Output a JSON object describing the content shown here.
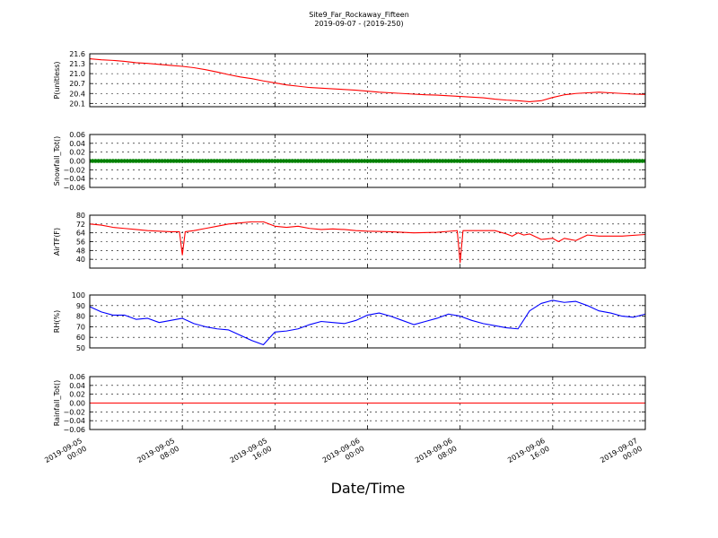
{
  "figure": {
    "title_line1": "Site9_Far_Rockaway_Fifteen",
    "title_line2": "2019-09-07 - (2019-250)",
    "xlabel": "Date/Time",
    "x_ticks": [
      {
        "line1": "2019-09-05",
        "line2": "00:00"
      },
      {
        "line1": "2019-09-05",
        "line2": "08:00"
      },
      {
        "line1": "2019-09-05",
        "line2": "16:00"
      },
      {
        "line1": "2019-09-06",
        "line2": "00:00"
      },
      {
        "line1": "2019-09-06",
        "line2": "08:00"
      },
      {
        "line1": "2019-09-06",
        "line2": "16:00"
      },
      {
        "line1": "2019-09-07",
        "line2": "00:00"
      }
    ]
  },
  "chart_data": [
    {
      "type": "line",
      "ylabel": "P(unitless)",
      "ylim": [
        20.0,
        21.6
      ],
      "yticks": [
        20.1,
        20.4,
        20.7,
        21.0,
        21.3,
        21.6
      ],
      "ytick_labels": [
        "20.1",
        "20.4",
        "20.7",
        "21.0",
        "21.3",
        "21.6"
      ],
      "xlim": [
        "2019-09-05 00:00",
        "2019-09-07 00:00"
      ],
      "color": "#ff0000",
      "grid": true,
      "series": [
        {
          "x": [
            "2019-09-05 00:00",
            "2019-09-05 01:00",
            "2019-09-05 02:00",
            "2019-09-05 03:00",
            "2019-09-05 04:00",
            "2019-09-05 05:00",
            "2019-09-05 06:00",
            "2019-09-05 07:00",
            "2019-09-05 08:00",
            "2019-09-05 09:00",
            "2019-09-05 10:00",
            "2019-09-05 11:00",
            "2019-09-05 12:00",
            "2019-09-05 13:00",
            "2019-09-05 14:00",
            "2019-09-05 15:00",
            "2019-09-05 16:00",
            "2019-09-05 17:00",
            "2019-09-05 18:00",
            "2019-09-05 19:00",
            "2019-09-05 20:00",
            "2019-09-05 21:00",
            "2019-09-05 22:00",
            "2019-09-05 23:00",
            "2019-09-06 00:00",
            "2019-09-06 01:00",
            "2019-09-06 02:00",
            "2019-09-06 03:00",
            "2019-09-06 04:00",
            "2019-09-06 05:00",
            "2019-09-06 06:00",
            "2019-09-06 07:00",
            "2019-09-06 08:00",
            "2019-09-06 09:00",
            "2019-09-06 10:00",
            "2019-09-06 11:00",
            "2019-09-06 12:00",
            "2019-09-06 13:00",
            "2019-09-06 14:00",
            "2019-09-06 15:00",
            "2019-09-06 16:00",
            "2019-09-06 17:00",
            "2019-09-06 18:00",
            "2019-09-06 19:00",
            "2019-09-06 20:00",
            "2019-09-06 21:00",
            "2019-09-06 22:00",
            "2019-09-06 23:00",
            "2019-09-07 00:00"
          ],
          "values": [
            21.45,
            21.42,
            21.4,
            21.37,
            21.33,
            21.31,
            21.28,
            21.25,
            21.22,
            21.18,
            21.12,
            21.05,
            20.97,
            20.9,
            20.85,
            20.78,
            20.72,
            20.66,
            20.62,
            20.58,
            20.56,
            20.54,
            20.52,
            20.5,
            20.47,
            20.44,
            20.42,
            20.4,
            20.38,
            20.36,
            20.35,
            20.33,
            20.31,
            20.29,
            20.27,
            20.23,
            20.2,
            20.18,
            20.15,
            20.18,
            20.28,
            20.36,
            20.4,
            20.42,
            20.44,
            20.42,
            20.4,
            20.38,
            20.37
          ]
        }
      ]
    },
    {
      "type": "scatter",
      "ylabel": "Snowfall_Tot()",
      "ylim": [
        -0.06,
        0.06
      ],
      "yticks": [
        -0.06,
        -0.04,
        -0.02,
        0.0,
        0.02,
        0.04,
        0.06
      ],
      "ytick_labels": [
        "−0.06",
        "−0.04",
        "−0.02",
        "0.00",
        "0.02",
        "0.04",
        "0.06"
      ],
      "xlim": [
        "2019-09-05 00:00",
        "2019-09-07 00:00"
      ],
      "color": "#008000",
      "grid": true,
      "series": [
        {
          "x_range": [
            "2019-09-05 00:00",
            "2019-09-07 00:00"
          ],
          "constant_value": 0.0,
          "sampling": "every 15 minutes"
        }
      ]
    },
    {
      "type": "line",
      "ylabel": "AirTF(F)",
      "ylim": [
        32,
        80
      ],
      "yticks": [
        40,
        48,
        56,
        64,
        72,
        80
      ],
      "ytick_labels": [
        "40",
        "48",
        "56",
        "64",
        "72",
        "80"
      ],
      "xlim": [
        "2019-09-05 00:00",
        "2019-09-07 00:00"
      ],
      "color": "#ff0000",
      "grid": true,
      "series": [
        {
          "x": [
            "2019-09-05 00:00",
            "2019-09-05 01:00",
            "2019-09-05 02:00",
            "2019-09-05 03:00",
            "2019-09-05 04:00",
            "2019-09-05 05:00",
            "2019-09-05 06:00",
            "2019-09-05 07:00",
            "2019-09-05 07:45",
            "2019-09-05 08:00",
            "2019-09-05 08:15",
            "2019-09-05 09:00",
            "2019-09-05 10:00",
            "2019-09-05 11:00",
            "2019-09-05 12:00",
            "2019-09-05 13:00",
            "2019-09-05 14:00",
            "2019-09-05 15:00",
            "2019-09-05 16:00",
            "2019-09-05 17:00",
            "2019-09-05 18:00",
            "2019-09-05 19:00",
            "2019-09-05 20:00",
            "2019-09-05 21:00",
            "2019-09-05 22:00",
            "2019-09-05 23:00",
            "2019-09-06 00:00",
            "2019-09-06 02:00",
            "2019-09-06 04:00",
            "2019-09-06 06:00",
            "2019-09-06 07:45",
            "2019-09-06 08:00",
            "2019-09-06 08:15",
            "2019-09-06 10:00",
            "2019-09-06 11:00",
            "2019-09-06 12:00",
            "2019-09-06 12:30",
            "2019-09-06 13:00",
            "2019-09-06 13:30",
            "2019-09-06 14:00",
            "2019-09-06 15:00",
            "2019-09-06 16:00",
            "2019-09-06 16:30",
            "2019-09-06 17:00",
            "2019-09-06 18:00",
            "2019-09-06 19:00",
            "2019-09-06 20:00",
            "2019-09-06 22:00",
            "2019-09-07 00:00"
          ],
          "values": [
            72,
            71,
            69,
            68,
            67,
            66,
            65.5,
            65,
            65,
            44,
            65,
            66,
            68,
            70,
            72,
            73,
            74,
            74,
            70,
            69,
            70,
            68,
            67,
            67.5,
            67,
            66,
            65.5,
            65,
            64,
            64.5,
            66,
            37,
            66,
            66,
            66,
            63,
            61,
            64,
            62,
            63,
            58,
            59,
            56,
            59,
            57,
            62,
            61,
            61,
            62.5
          ]
        }
      ]
    },
    {
      "type": "line",
      "ylabel": "RH(%)",
      "ylim": [
        50,
        100
      ],
      "yticks": [
        50,
        60,
        70,
        80,
        90,
        100
      ],
      "ytick_labels": [
        "50",
        "60",
        "70",
        "80",
        "90",
        "100"
      ],
      "xlim": [
        "2019-09-05 00:00",
        "2019-09-07 00:00"
      ],
      "color": "#0000ff",
      "grid": true,
      "series": [
        {
          "x": [
            "2019-09-05 00:00",
            "2019-09-05 01:00",
            "2019-09-05 02:00",
            "2019-09-05 03:00",
            "2019-09-05 04:00",
            "2019-09-05 05:00",
            "2019-09-05 06:00",
            "2019-09-05 07:00",
            "2019-09-05 08:00",
            "2019-09-05 09:00",
            "2019-09-05 10:00",
            "2019-09-05 11:00",
            "2019-09-05 12:00",
            "2019-09-05 13:00",
            "2019-09-05 14:00",
            "2019-09-05 15:00",
            "2019-09-05 16:00",
            "2019-09-05 17:00",
            "2019-09-05 18:00",
            "2019-09-05 19:00",
            "2019-09-05 20:00",
            "2019-09-05 21:00",
            "2019-09-05 22:00",
            "2019-09-05 23:00",
            "2019-09-06 00:00",
            "2019-09-06 01:00",
            "2019-09-06 02:00",
            "2019-09-06 03:00",
            "2019-09-06 04:00",
            "2019-09-06 05:00",
            "2019-09-06 06:00",
            "2019-09-06 07:00",
            "2019-09-06 08:00",
            "2019-09-06 09:00",
            "2019-09-06 10:00",
            "2019-09-06 11:00",
            "2019-09-06 12:00",
            "2019-09-06 13:00",
            "2019-09-06 14:00",
            "2019-09-06 15:00",
            "2019-09-06 16:00",
            "2019-09-06 17:00",
            "2019-09-06 18:00",
            "2019-09-06 19:00",
            "2019-09-06 20:00",
            "2019-09-06 21:00",
            "2019-09-06 22:00",
            "2019-09-06 23:00",
            "2019-09-07 00:00"
          ],
          "values": [
            89,
            84,
            81,
            81,
            77,
            78,
            74,
            76,
            78,
            73,
            70,
            68,
            67,
            62,
            57,
            53,
            65,
            66,
            68,
            72,
            75,
            74,
            73,
            76,
            81,
            83,
            80,
            76,
            72,
            75,
            78,
            82,
            80,
            76,
            73,
            71,
            69,
            68,
            85,
            92,
            95,
            93,
            94,
            90,
            85,
            83,
            80,
            79,
            82
          ]
        }
      ]
    },
    {
      "type": "line",
      "ylabel": "Rainfall_Tot()",
      "ylim": [
        -0.06,
        0.06
      ],
      "yticks": [
        -0.06,
        -0.04,
        -0.02,
        0.0,
        0.02,
        0.04,
        0.06
      ],
      "ytick_labels": [
        "−0.06",
        "−0.04",
        "−0.02",
        "0.00",
        "0.02",
        "0.04",
        "0.06"
      ],
      "xlim": [
        "2019-09-05 00:00",
        "2019-09-07 00:00"
      ],
      "color": "#ff0000",
      "grid": true,
      "series": [
        {
          "x": [
            "2019-09-05 00:00",
            "2019-09-07 00:00"
          ],
          "values": [
            0.0,
            0.0
          ]
        }
      ]
    }
  ]
}
